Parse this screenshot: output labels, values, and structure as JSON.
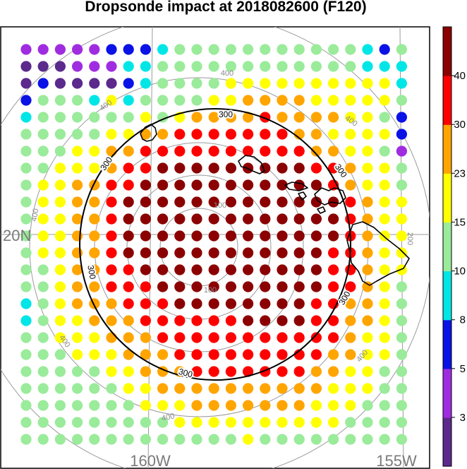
{
  "title": "Dropsonde impact at 2018082600 (F120)",
  "map_labels": {
    "lat_20n": "20N",
    "lon_160w": "160W",
    "lon_155w": "155W"
  },
  "range_ring_labels": {
    "r100": "100",
    "r200": "200",
    "r300": "300",
    "r400": "400"
  },
  "colorbar": {
    "colors": [
      "#5b2a8c",
      "#a02ce0",
      "#0a12e6",
      "#00e6e6",
      "#9aeb9a",
      "#ffff00",
      "#ffa500",
      "#ff0000",
      "#8b0000"
    ],
    "tick_labels": [
      "3",
      "5",
      "8",
      "10",
      "15",
      "23",
      "30",
      "40"
    ]
  },
  "chart_data": {
    "type": "scatter",
    "title": "Dropsonde impact at 2018082600 (F120)",
    "grid": true,
    "color_levels": [
      3,
      5,
      8,
      10,
      15,
      23,
      30,
      40
    ],
    "level_codes_description": "",
    "grid_columns": 23,
    "grid_rows": 24,
    "rows": [
      "11111222344444444444324",
      "00011133444444444444333",
      "02000023444455555555553",
      "24443534444556666555554",
      "34444445456666766665542",
      "44444556677777776655552",
      "44455667777777777665541",
      "44555677888888888776554",
      "45566778888888888876554",
      "45566788888888888887655",
      "45566788888888888887655",
      "45566788888888888887655",
      "45566788888888888877655",
      "44566778888888888877655",
      "44566777888888888877654",
      "34566677788888888776654",
      "34556667777778888776654",
      "44555666777777777776554",
      "44455566677777777766554",
      "44444556667777777665544",
      "44444455666666666655544",
      "44444445556666666555444",
      "44444444455555555554444",
      "44444444444445444444444"
    ]
  }
}
